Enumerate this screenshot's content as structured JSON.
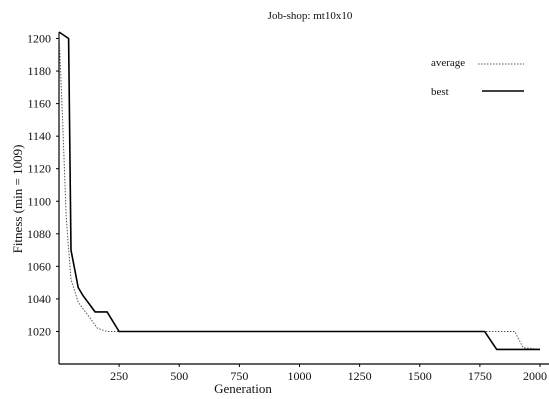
{
  "chart_data": {
    "type": "line",
    "title": "Job-shop: mt10x10",
    "xlabel": "Generation",
    "ylabel": "Fitness (min = 1009)",
    "xlim": [
      0,
      2000
    ],
    "ylim": [
      1000,
      1204
    ],
    "x_ticks": [
      250,
      500,
      750,
      1000,
      1250,
      1500,
      1750,
      2000
    ],
    "y_ticks": [
      1020,
      1040,
      1060,
      1080,
      1100,
      1120,
      1140,
      1160,
      1180,
      1200
    ],
    "grid": false,
    "legend_position": "top-right",
    "series": [
      {
        "name": "average",
        "style": "dotted",
        "color": "#555555",
        "x": [
          0,
          15,
          30,
          50,
          80,
          120,
          160,
          200,
          250,
          500,
          1000,
          1500,
          1780,
          1850,
          1895,
          1930,
          2000
        ],
        "y": [
          1204,
          1150,
          1090,
          1052,
          1038,
          1030,
          1022,
          1020,
          1020,
          1020,
          1020,
          1020,
          1020,
          1020,
          1020,
          1010,
          1009
        ]
      },
      {
        "name": "best",
        "style": "solid",
        "color": "#000000",
        "x": [
          0,
          40,
          50,
          80,
          100,
          150,
          200,
          250,
          500,
          1000,
          1500,
          1750,
          1770,
          1820,
          1880,
          2000
        ],
        "y": [
          1204,
          1200,
          1070,
          1047,
          1042,
          1032,
          1032,
          1020,
          1020,
          1020,
          1020,
          1020,
          1020,
          1009,
          1009,
          1009
        ]
      }
    ]
  }
}
